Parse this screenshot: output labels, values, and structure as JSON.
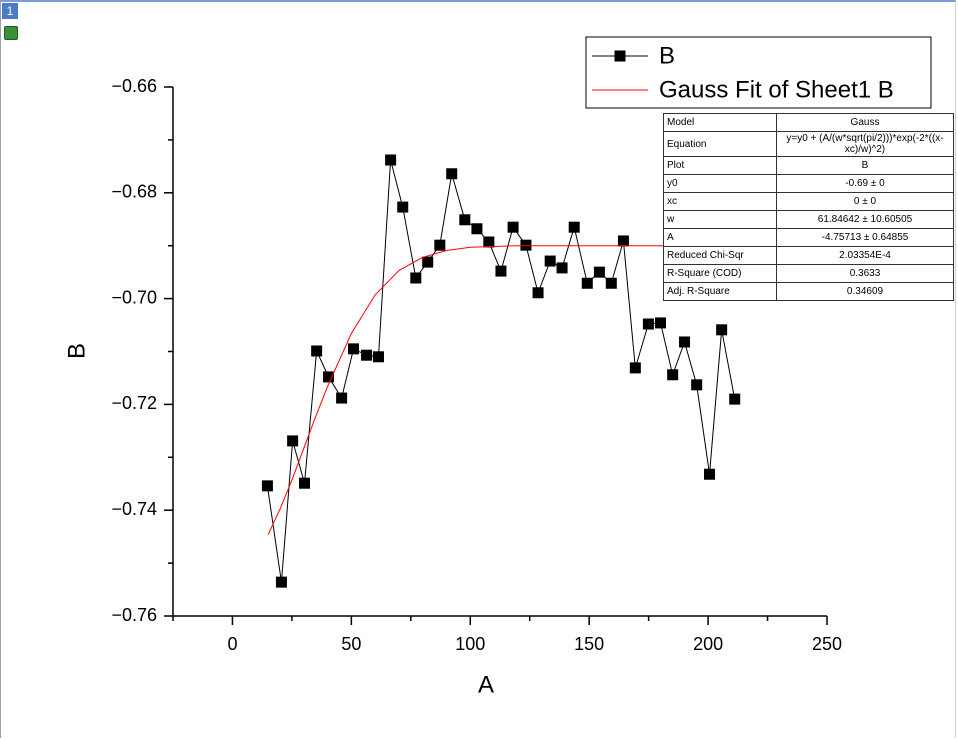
{
  "window": {
    "tab": "1"
  },
  "chart_data": {
    "type": "line",
    "x_label": "A",
    "y_label": "B",
    "xlim": [
      -25,
      250
    ],
    "xticks": [
      0,
      50,
      100,
      150,
      200,
      250
    ],
    "xminorticks": [
      -25,
      25,
      75,
      125,
      175,
      225
    ],
    "ylim": [
      -0.76,
      -0.66
    ],
    "yticks": [
      {
        "value": -0.66,
        "label": "−0.66"
      },
      {
        "value": -0.68,
        "label": "−0.68"
      },
      {
        "value": -0.7,
        "label": "−0.70"
      },
      {
        "value": -0.72,
        "label": "−0.72"
      },
      {
        "value": -0.74,
        "label": "−0.74"
      },
      {
        "value": -0.76,
        "label": "−0.76"
      }
    ],
    "yminorticks": [
      -0.67,
      -0.69,
      -0.71,
      -0.73,
      -0.75
    ],
    "legend": "top-right",
    "series": [
      {
        "name": "B",
        "color": "#000000",
        "marker": "square",
        "x": [
          14.7,
          20.6,
          25.3,
          30.3,
          35.4,
          40.4,
          45.9,
          50.9,
          56.4,
          61.4,
          66.5,
          71.6,
          77.1,
          82.1,
          87.2,
          92.2,
          97.7,
          102.8,
          107.8,
          112.9,
          118.0,
          123.4,
          128.5,
          133.6,
          138.6,
          143.7,
          149.2,
          154.3,
          159.3,
          164.4,
          169.4,
          174.9,
          180.0,
          185.1,
          190.1,
          195.2,
          200.6,
          205.7,
          211.2
        ],
        "values": [
          -0.7354,
          -0.7536,
          -0.7269,
          -0.7349,
          -0.7099,
          -0.7148,
          -0.7188,
          -0.7095,
          -0.7107,
          -0.711,
          -0.6738,
          -0.6827,
          -0.6961,
          -0.6931,
          -0.6899,
          -0.6764,
          -0.6851,
          -0.6868,
          -0.6893,
          -0.6948,
          -0.6865,
          -0.6899,
          -0.6989,
          -0.6929,
          -0.6942,
          -0.6865,
          -0.6971,
          -0.695,
          -0.6971,
          -0.6891,
          -0.7131,
          -0.7048,
          -0.7046,
          -0.7144,
          -0.7082,
          -0.7163,
          -0.7332,
          -0.7059,
          -0.719
        ]
      },
      {
        "name": "Gauss Fit of Sheet1 B",
        "color": "#ff0000",
        "marker": "none",
        "x": [
          15,
          20,
          25,
          30,
          35,
          40,
          50,
          60,
          70,
          80,
          90,
          100,
          120,
          150,
          180,
          210
        ],
        "values": [
          -0.7446,
          -0.7398,
          -0.7343,
          -0.7283,
          -0.7223,
          -0.7166,
          -0.7066,
          -0.6993,
          -0.6947,
          -0.6922,
          -0.6909,
          -0.6903,
          -0.69,
          -0.69,
          -0.69,
          -0.69
        ]
      }
    ]
  },
  "fit_table": {
    "rows": [
      [
        "Model",
        "Gauss"
      ],
      [
        "Equation",
        "y=y0 + (A/(w*sqrt(pi/2)))*exp(-2*((x-xc)/w)^2)"
      ],
      [
        "Plot",
        "B"
      ],
      [
        "y0",
        "-0.69 ± 0"
      ],
      [
        "xc",
        "0 ± 0"
      ],
      [
        "w",
        "61.84642 ± 10.60505"
      ],
      [
        "A",
        "-4.75713 ± 0.64855"
      ],
      [
        "Reduced Chi-Sqr",
        "2.03354E-4"
      ],
      [
        "R-Square (COD)",
        "0.3633"
      ],
      [
        "Adj. R-Square",
        "0.34609"
      ]
    ]
  }
}
